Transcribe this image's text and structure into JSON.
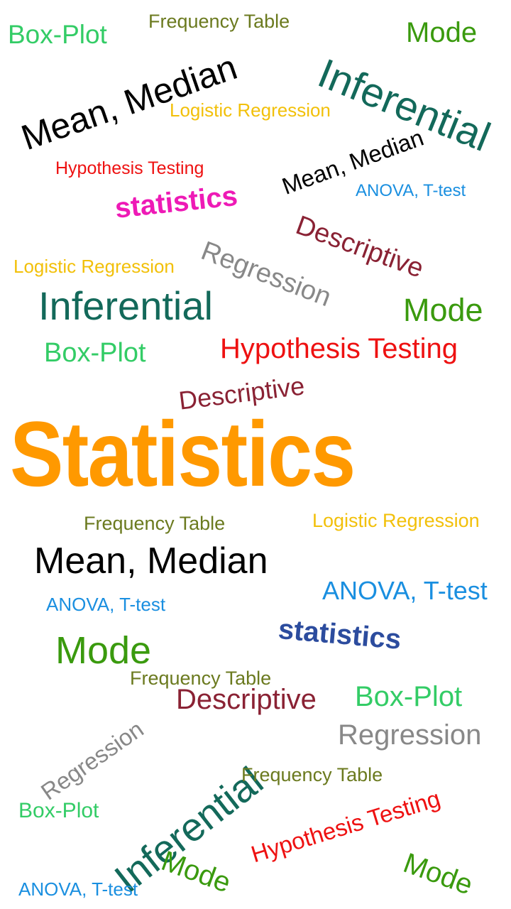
{
  "colors": {
    "orange": "#FF9900",
    "green_light": "#33CC66",
    "olive": "#6B7A1F",
    "mode_green": "#3A9A0E",
    "teal": "#13695A",
    "black": "#000000",
    "gold": "#F2C00A",
    "red": "#EE1111",
    "blue": "#1A8FE0",
    "magenta": "#EE1AB6",
    "maroon": "#8A2234",
    "gray": "#888888",
    "navy": "#2C4C9E"
  },
  "words": [
    {
      "text": "Box-Plot",
      "color": "green_light"
    },
    {
      "text": "Frequency Table",
      "color": "olive"
    },
    {
      "text": "Mode",
      "color": "mode_green"
    },
    {
      "text": "Inferential",
      "color": "teal"
    },
    {
      "text": "Mean, Median",
      "color": "black"
    },
    {
      "text": "Logistic Regression",
      "color": "gold"
    },
    {
      "text": "Hypothesis Testing",
      "color": "red"
    },
    {
      "text": "Mean, Median",
      "color": "black"
    },
    {
      "text": "ANOVA, T-test",
      "color": "blue"
    },
    {
      "text": "statistics",
      "color": "magenta"
    },
    {
      "text": "Descriptive",
      "color": "maroon"
    },
    {
      "text": "Regression",
      "color": "gray"
    },
    {
      "text": "Logistic Regression",
      "color": "gold"
    },
    {
      "text": "Inferential",
      "color": "teal"
    },
    {
      "text": "Mode",
      "color": "mode_green"
    },
    {
      "text": "Box-Plot",
      "color": "green_light"
    },
    {
      "text": "Hypothesis Testing",
      "color": "red"
    },
    {
      "text": "Descriptive",
      "color": "maroon"
    },
    {
      "text": "Statistics",
      "color": "orange"
    },
    {
      "text": "Frequency Table",
      "color": "olive"
    },
    {
      "text": "Logistic Regression",
      "color": "gold"
    },
    {
      "text": "Mean, Median",
      "color": "black"
    },
    {
      "text": "ANOVA, T-test",
      "color": "blue"
    },
    {
      "text": "ANOVA, T-test",
      "color": "blue"
    },
    {
      "text": "statistics",
      "color": "navy"
    },
    {
      "text": "Mode",
      "color": "mode_green"
    },
    {
      "text": "Frequency Table",
      "color": "olive"
    },
    {
      "text": "Descriptive",
      "color": "maroon"
    },
    {
      "text": "Box-Plot",
      "color": "green_light"
    },
    {
      "text": "Regression",
      "color": "gray"
    },
    {
      "text": "Regression",
      "color": "gray"
    },
    {
      "text": "Inferential",
      "color": "teal"
    },
    {
      "text": "Frequency Table",
      "color": "olive"
    },
    {
      "text": "Box-Plot",
      "color": "green_light"
    },
    {
      "text": "Hypothesis Testing",
      "color": "red"
    },
    {
      "text": "Mode",
      "color": "mode_green"
    },
    {
      "text": "Mode",
      "color": "mode_green"
    },
    {
      "text": "ANOVA, T-test",
      "color": "blue"
    }
  ]
}
